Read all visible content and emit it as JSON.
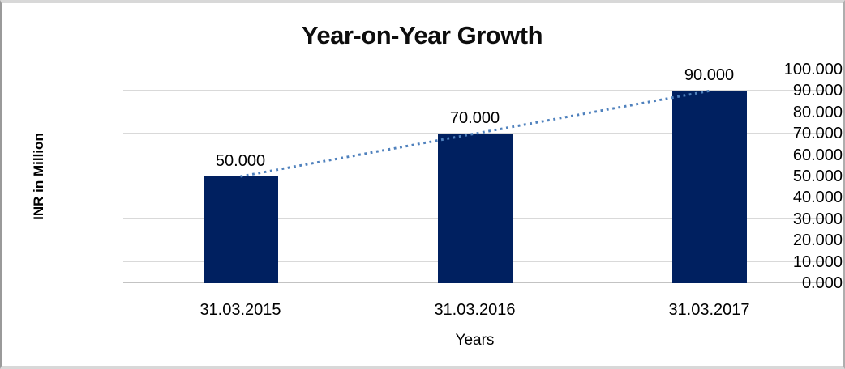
{
  "window": {
    "background": "#ffffff",
    "border_color": "#9a9a9a"
  },
  "chart_data": {
    "type": "bar",
    "title": "Year-on-Year Growth",
    "xlabel": "Years",
    "ylabel": "INR in Million",
    "categories": [
      "31.03.2015",
      "31.03.2016",
      "31.03.2017"
    ],
    "series": [
      {
        "name": "INR in Million",
        "values": [
          50000,
          70000,
          90000
        ]
      }
    ],
    "value_labels": [
      "50.000",
      "70.000",
      "90.000"
    ],
    "yticks": [
      "0.000",
      "10.000",
      "20.000",
      "30.000",
      "40.000",
      "50.000",
      "60.000",
      "70.000",
      "80.000",
      "90.000",
      "100.000"
    ],
    "ylim": [
      0,
      100000
    ],
    "grid": true,
    "legend": false,
    "bar_color": "#002060",
    "gridline_color": "#d9d9d9",
    "trendline": {
      "type": "linear",
      "style": "dotted",
      "color": "#4f81bd"
    }
  }
}
